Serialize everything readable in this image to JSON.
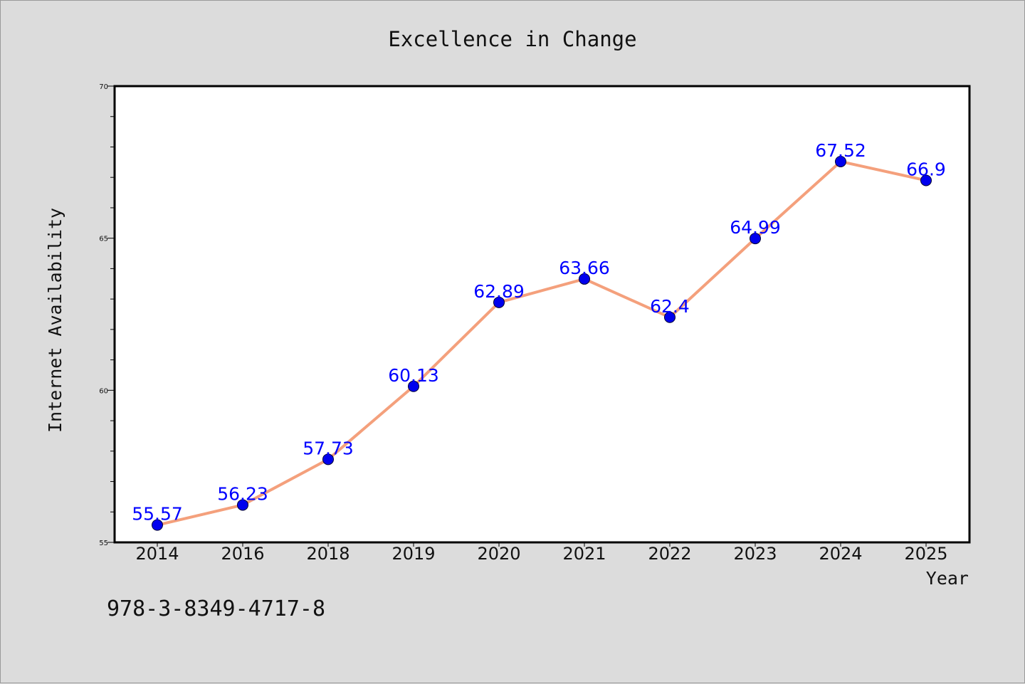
{
  "chart_data": {
    "type": "line",
    "title": "Excellence in Change",
    "xlabel": "Year",
    "ylabel": "Internet Availability",
    "categories": [
      "2014",
      "2016",
      "2018",
      "2019",
      "2020",
      "2021",
      "2022",
      "2023",
      "2024",
      "2025"
    ],
    "series": [
      {
        "values": [
          55.57,
          56.23,
          57.73,
          60.13,
          62.89,
          63.66,
          62.4,
          64.99,
          67.52,
          66.9
        ],
        "data_labels": [
          "55.57",
          "56.23",
          "57.73",
          "60.13",
          "62.89",
          "63.66",
          "62.4",
          "64.99",
          "67.52",
          "66.9"
        ],
        "line_color": "#f4a07c",
        "marker_color": "#0000ee",
        "label_color": "#0000ff"
      }
    ],
    "ylim": [
      55,
      70
    ],
    "yticks": [
      "55",
      "60",
      "65",
      "70"
    ],
    "grid": false,
    "legend": "none"
  },
  "footer": {
    "isbn": "978-3-8349-4717-8"
  },
  "colors": {
    "background": "#dcdcdc",
    "plot_background": "#ffffff"
  }
}
